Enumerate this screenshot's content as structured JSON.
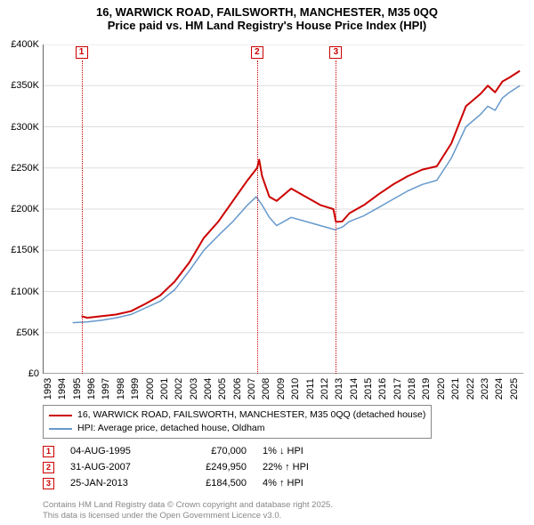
{
  "title_line1": "16, WARWICK ROAD, FAILSWORTH, MANCHESTER, M35 0QQ",
  "title_line2": "Price paid vs. HM Land Registry's House Price Index (HPI)",
  "chart": {
    "type": "line",
    "background_color": "#ffffff",
    "grid_color": "#dddddd",
    "axis_color": "#666666",
    "x_range": [
      1993,
      2026
    ],
    "x_ticks": [
      1993,
      1994,
      1995,
      1996,
      1997,
      1998,
      1999,
      2000,
      2001,
      2002,
      2003,
      2004,
      2005,
      2006,
      2007,
      2008,
      2009,
      2010,
      2011,
      2012,
      2013,
      2014,
      2015,
      2016,
      2017,
      2018,
      2019,
      2020,
      2021,
      2022,
      2023,
      2024,
      2025
    ],
    "y_range": [
      0,
      400000
    ],
    "y_ticks": [
      0,
      50000,
      100000,
      150000,
      200000,
      250000,
      300000,
      350000,
      400000
    ],
    "y_tick_labels": [
      "£0",
      "£50K",
      "£100K",
      "£150K",
      "£200K",
      "£250K",
      "£300K",
      "£350K",
      "£400K"
    ],
    "label_fontsize": 11,
    "series": [
      {
        "name": "16, WARWICK ROAD, FAILSWORTH, MANCHESTER, M35 0QQ (detached house)",
        "color": "#cc0000",
        "width": 2,
        "points": [
          [
            1995.6,
            70000
          ],
          [
            1996,
            68000
          ],
          [
            1997,
            70000
          ],
          [
            1998,
            72000
          ],
          [
            1999,
            76000
          ],
          [
            2000,
            85000
          ],
          [
            2001,
            95000
          ],
          [
            2002,
            112000
          ],
          [
            2003,
            135000
          ],
          [
            2004,
            165000
          ],
          [
            2005,
            185000
          ],
          [
            2006,
            210000
          ],
          [
            2007,
            235000
          ],
          [
            2007.66,
            249950
          ],
          [
            2007.8,
            260000
          ],
          [
            2008,
            240000
          ],
          [
            2008.5,
            215000
          ],
          [
            2009,
            210000
          ],
          [
            2010,
            225000
          ],
          [
            2011,
            215000
          ],
          [
            2012,
            205000
          ],
          [
            2012.9,
            200000
          ],
          [
            2013.07,
            184500
          ],
          [
            2013.5,
            185000
          ],
          [
            2014,
            195000
          ],
          [
            2015,
            205000
          ],
          [
            2016,
            218000
          ],
          [
            2017,
            230000
          ],
          [
            2018,
            240000
          ],
          [
            2019,
            248000
          ],
          [
            2020,
            252000
          ],
          [
            2021,
            280000
          ],
          [
            2022,
            325000
          ],
          [
            2023,
            340000
          ],
          [
            2023.5,
            350000
          ],
          [
            2024,
            342000
          ],
          [
            2024.5,
            355000
          ],
          [
            2025,
            360000
          ],
          [
            2025.7,
            368000
          ]
        ]
      },
      {
        "name": "HPI: Average price, detached house, Oldham",
        "color": "#6699cc",
        "width": 1.5,
        "points": [
          [
            1995,
            62000
          ],
          [
            1996,
            63000
          ],
          [
            1997,
            65000
          ],
          [
            1998,
            68000
          ],
          [
            1999,
            72000
          ],
          [
            2000,
            80000
          ],
          [
            2001,
            88000
          ],
          [
            2002,
            102000
          ],
          [
            2003,
            125000
          ],
          [
            2004,
            150000
          ],
          [
            2005,
            168000
          ],
          [
            2006,
            185000
          ],
          [
            2007,
            205000
          ],
          [
            2007.6,
            215000
          ],
          [
            2008,
            205000
          ],
          [
            2008.5,
            190000
          ],
          [
            2009,
            180000
          ],
          [
            2010,
            190000
          ],
          [
            2011,
            185000
          ],
          [
            2012,
            180000
          ],
          [
            2013,
            175000
          ],
          [
            2013.5,
            178000
          ],
          [
            2014,
            185000
          ],
          [
            2015,
            192000
          ],
          [
            2016,
            202000
          ],
          [
            2017,
            212000
          ],
          [
            2018,
            222000
          ],
          [
            2019,
            230000
          ],
          [
            2020,
            235000
          ],
          [
            2021,
            262000
          ],
          [
            2022,
            300000
          ],
          [
            2023,
            315000
          ],
          [
            2023.5,
            325000
          ],
          [
            2024,
            320000
          ],
          [
            2024.5,
            335000
          ],
          [
            2025,
            342000
          ],
          [
            2025.7,
            350000
          ]
        ]
      }
    ],
    "markers": [
      {
        "n": "1",
        "x": 1995.6,
        "color": "#cc0000"
      },
      {
        "n": "2",
        "x": 2007.66,
        "color": "#cc0000"
      },
      {
        "n": "3",
        "x": 2013.07,
        "color": "#cc0000"
      }
    ]
  },
  "legend": {
    "border_color": "#888888",
    "rows": [
      {
        "color": "#cc0000",
        "label": "16, WARWICK ROAD, FAILSWORTH, MANCHESTER, M35 0QQ (detached house)"
      },
      {
        "color": "#6699cc",
        "label": "HPI: Average price, detached house, Oldham"
      }
    ]
  },
  "events": [
    {
      "n": "1",
      "color": "#cc0000",
      "date": "04-AUG-1995",
      "price": "£70,000",
      "delta": "1% ↓ HPI"
    },
    {
      "n": "2",
      "color": "#cc0000",
      "date": "31-AUG-2007",
      "price": "£249,950",
      "delta": "22% ↑ HPI"
    },
    {
      "n": "3",
      "color": "#cc0000",
      "date": "25-JAN-2013",
      "price": "£184,500",
      "delta": "4% ↑ HPI"
    }
  ],
  "footer_line1": "Contains HM Land Registry data © Crown copyright and database right 2025.",
  "footer_line2": "This data is licensed under the Open Government Licence v3.0."
}
